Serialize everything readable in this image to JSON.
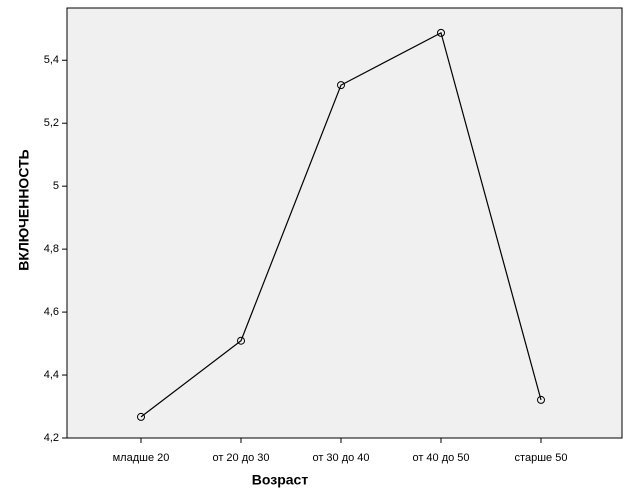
{
  "chart_data": {
    "type": "line",
    "x_label": "Возраст",
    "y_label": "ВКЛЮЧЕННОСТЬ",
    "categories": [
      "младше 20",
      "от 20 до 30",
      "от 30 до 40",
      "от 40 до 50",
      "старше 50"
    ],
    "values": [
      4.267,
      4.509,
      5.321,
      5.487,
      4.321
    ],
    "color": "#000000",
    "ylim": [
      4.2,
      5.566
    ],
    "yticks": [
      {
        "value": 4.2,
        "label": "4,2"
      },
      {
        "value": 4.4,
        "label": "4,4"
      },
      {
        "value": 4.6,
        "label": "4,6"
      },
      {
        "value": 4.8,
        "label": "4,8"
      },
      5,
      {
        "value": 5.2,
        "label": "5,2"
      },
      {
        "value": 5.4,
        "label": "5,4"
      }
    ]
  }
}
